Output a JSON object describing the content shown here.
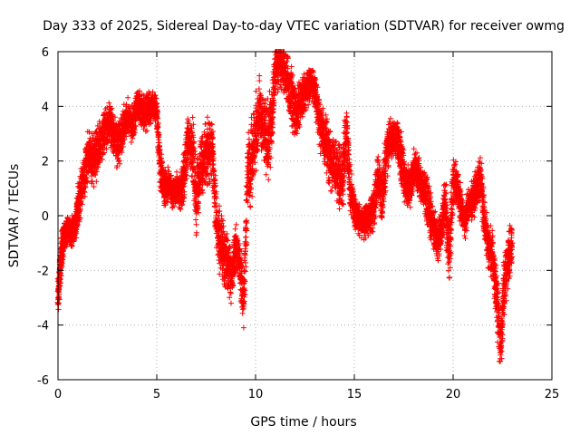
{
  "chart_data": {
    "type": "scatter",
    "title": "Day 333 of 2025, Sidereal Day-to-day VTEC variation (SDTVAR) for receiver owmg",
    "xlabel": "GPS time / hours",
    "ylabel": "SDTVAR / TECUs",
    "xlim": [
      0,
      25
    ],
    "ylim": [
      -6,
      6
    ],
    "xticks": [
      0,
      5,
      10,
      15,
      20,
      25
    ],
    "yticks": [
      -6,
      -4,
      -2,
      0,
      2,
      4,
      6
    ],
    "grid": true,
    "marker": "+",
    "series": [
      {
        "name": "SDTVAR",
        "color": "#ff0000",
        "x": [
          0.0,
          0.1,
          0.2,
          0.3,
          0.5,
          0.7,
          0.9,
          1.0,
          1.2,
          1.4,
          1.6,
          1.8,
          2.0,
          2.2,
          2.4,
          2.6,
          2.8,
          3.0,
          3.2,
          3.4,
          3.6,
          3.8,
          4.0,
          4.2,
          4.4,
          4.6,
          4.8,
          5.0,
          5.2,
          5.4,
          5.6,
          5.8,
          6.0,
          6.2,
          6.4,
          6.6,
          6.8,
          7.0,
          7.2,
          7.4,
          7.6,
          7.8,
          8.0,
          8.2,
          8.4,
          8.6,
          8.8,
          9.0,
          9.2,
          9.4,
          9.6,
          9.8,
          10.0,
          10.2,
          10.4,
          10.6,
          10.8,
          11.0,
          11.2,
          11.4,
          11.6,
          11.8,
          12.0,
          12.2,
          12.4,
          12.6,
          12.8,
          13.0,
          13.2,
          13.4,
          13.6,
          13.8,
          14.0,
          14.2,
          14.4,
          14.6,
          14.8,
          15.0,
          15.2,
          15.4,
          15.6,
          15.8,
          16.0,
          16.2,
          16.4,
          16.6,
          16.8,
          17.0,
          17.2,
          17.4,
          17.6,
          17.8,
          18.0,
          18.2,
          18.4,
          18.6,
          18.8,
          19.0,
          19.2,
          19.4,
          19.6,
          19.8,
          20.0,
          20.2,
          20.4,
          20.6,
          20.8,
          21.0,
          21.2,
          21.4,
          21.6,
          21.8,
          22.0,
          22.2,
          22.4,
          22.6,
          22.8,
          23.0
        ],
        "y": [
          -3.0,
          -2.0,
          -1.2,
          -0.8,
          -0.5,
          -0.6,
          -0.4,
          0.3,
          1.0,
          1.8,
          2.2,
          2.0,
          2.3,
          2.8,
          3.2,
          3.4,
          3.0,
          2.6,
          2.8,
          3.5,
          3.6,
          3.2,
          4.1,
          3.9,
          3.7,
          3.9,
          4.0,
          3.8,
          1.5,
          1.0,
          1.2,
          0.8,
          1.0,
          0.9,
          1.5,
          2.8,
          2.5,
          0.5,
          1.8,
          2.0,
          2.3,
          2.6,
          0.0,
          -1.0,
          -1.5,
          -1.8,
          -2.2,
          -1.2,
          -1.8,
          -3.2,
          1.5,
          2.0,
          3.0,
          4.0,
          3.2,
          2.6,
          3.5,
          5.2,
          5.6,
          5.4,
          5.0,
          4.4,
          3.8,
          4.0,
          4.3,
          4.7,
          4.9,
          4.6,
          3.6,
          3.0,
          2.5,
          2.0,
          1.8,
          1.5,
          1.2,
          3.0,
          1.0,
          0.2,
          -0.1,
          -0.3,
          -0.2,
          0.0,
          0.3,
          1.5,
          0.6,
          2.0,
          2.8,
          2.9,
          2.7,
          2.0,
          1.2,
          0.9,
          1.8,
          1.6,
          1.1,
          0.8,
          0.2,
          -0.4,
          -1.0,
          -0.5,
          0.6,
          -1.5,
          1.2,
          1.0,
          0.3,
          -0.2,
          0.4,
          0.6,
          1.0,
          1.4,
          -0.3,
          -1.2,
          -1.5,
          -3.0,
          -4.8,
          -2.5,
          -1.5,
          -1.0
        ],
        "y_spread": [
          0.6,
          0.9,
          0.8,
          0.6,
          0.6,
          0.6,
          0.5,
          0.9,
          1.0,
          1.1,
          1.1,
          1.2,
          1.1,
          1.0,
          0.9,
          0.8,
          0.9,
          1.0,
          1.0,
          0.8,
          0.8,
          0.9,
          0.6,
          0.7,
          0.8,
          0.7,
          0.6,
          0.6,
          0.9,
          0.7,
          0.7,
          0.6,
          0.7,
          0.8,
          1.2,
          1.0,
          1.3,
          1.5,
          1.3,
          1.3,
          1.5,
          1.4,
          1.3,
          1.4,
          1.3,
          1.3,
          1.2,
          1.0,
          1.1,
          1.2,
          1.8,
          1.7,
          1.5,
          1.3,
          1.5,
          1.8,
          1.5,
          1.1,
          1.0,
          1.0,
          1.1,
          1.3,
          1.2,
          1.0,
          1.0,
          0.8,
          0.7,
          0.8,
          1.0,
          1.1,
          1.2,
          1.2,
          1.2,
          1.3,
          1.5,
          1.5,
          1.2,
          0.8,
          0.7,
          0.7,
          0.7,
          0.8,
          0.9,
          1.0,
          1.2,
          1.1,
          0.8,
          0.7,
          0.8,
          1.1,
          1.0,
          0.8,
          0.7,
          0.8,
          0.8,
          1.0,
          1.0,
          0.9,
          0.9,
          0.9,
          1.1,
          1.1,
          1.0,
          0.9,
          0.8,
          0.8,
          0.8,
          0.8,
          0.9,
          0.9,
          1.0,
          1.0,
          1.1,
          1.2,
          1.3,
          1.3,
          1.2,
          1.0
        ]
      }
    ]
  }
}
